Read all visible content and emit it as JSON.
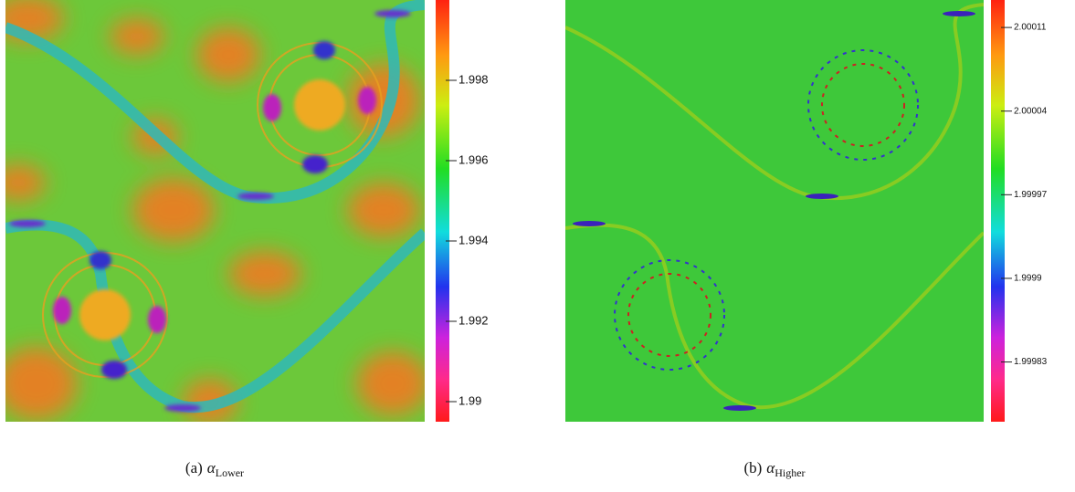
{
  "chart_data": [
    {
      "type": "heatmap",
      "caption": {
        "label": "(a)",
        "symbol": "α",
        "subscript": "Lower"
      },
      "zlim": [
        1.9895,
        2.0
      ],
      "zticks": [
        1.99,
        1.992,
        1.994,
        1.996,
        1.998
      ]
    },
    {
      "type": "heatmap",
      "caption": {
        "label": "(b)",
        "symbol": "α",
        "subscript": "Higher"
      },
      "zlim": [
        1.99978,
        2.000133
      ],
      "zticks": [
        1.99983,
        1.9999,
        1.99997,
        2.00004,
        2.00011
      ]
    }
  ]
}
